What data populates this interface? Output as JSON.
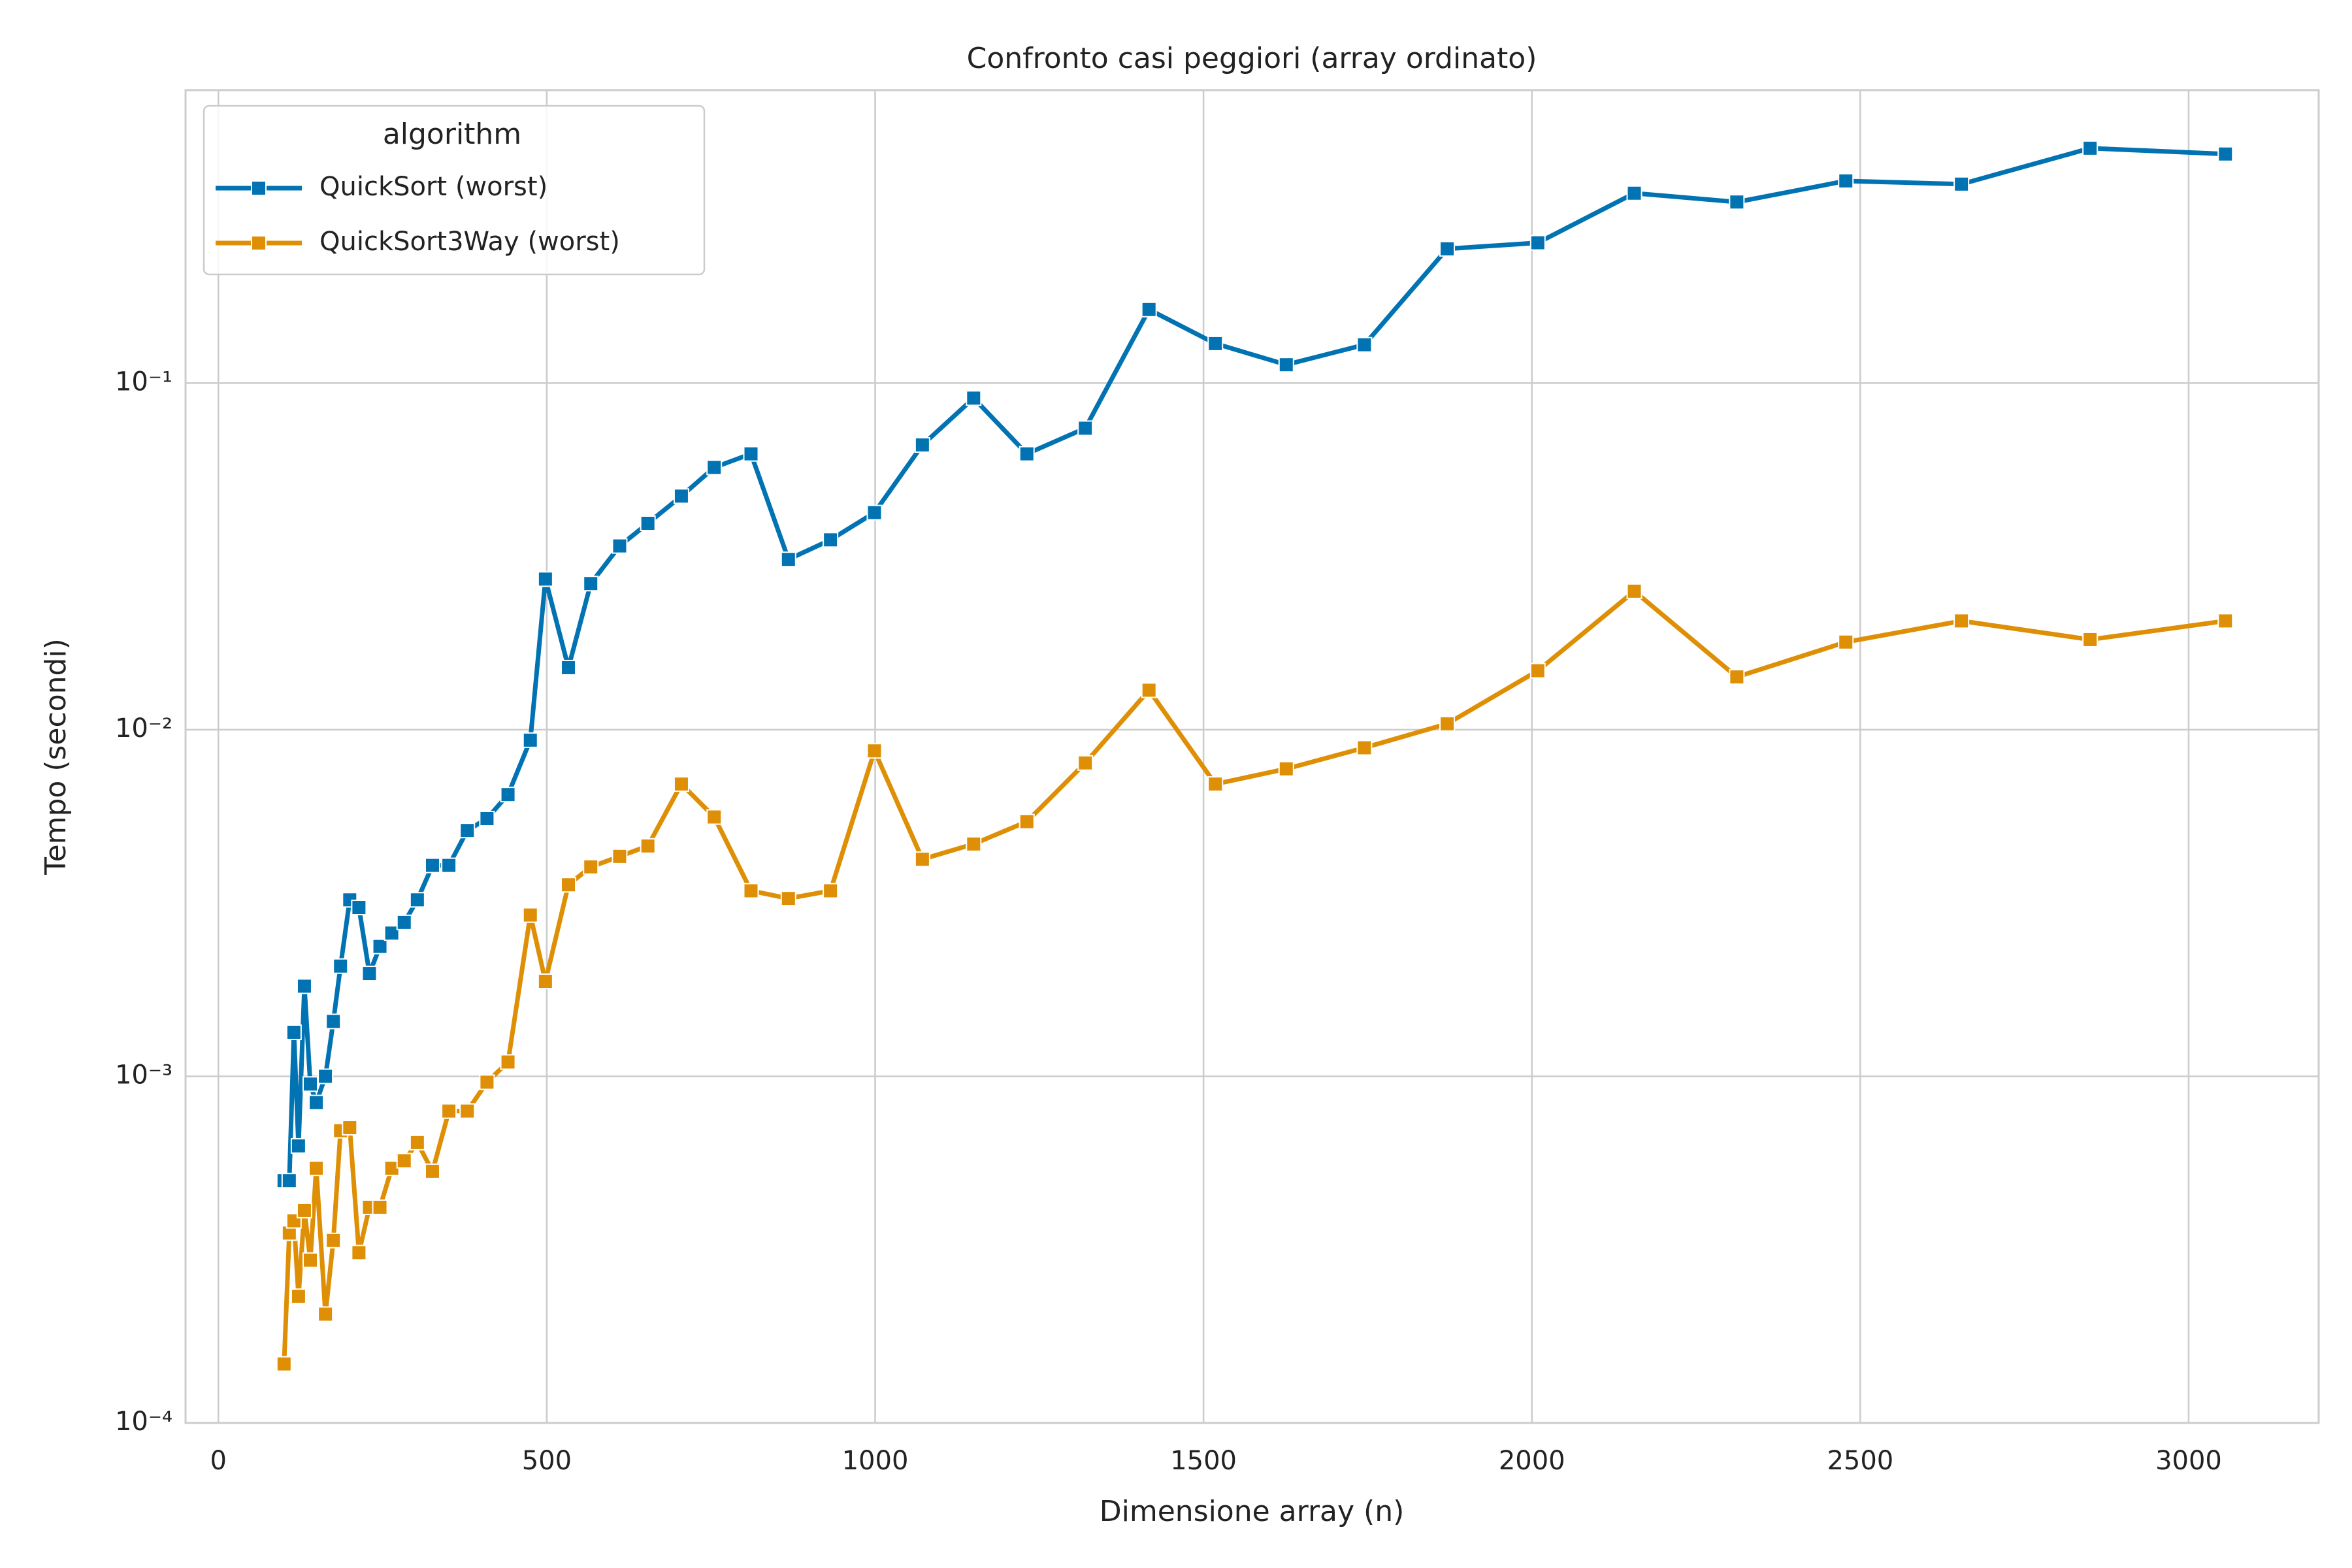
{
  "chart_data": {
    "type": "line",
    "title": "Confronto casi peggiori (array ordinato)",
    "x_label": "Dimensione array (n)",
    "y_label": "Tempo (secondi)",
    "x": [
      100,
      108,
      115,
      122,
      131,
      140,
      149,
      163,
      175,
      186,
      200,
      214,
      230,
      246,
      264,
      283,
      303,
      326,
      351,
      379,
      409,
      441,
      475,
      498,
      533,
      567,
      611,
      654,
      705,
      755,
      811,
      868,
      932,
      999,
      1072,
      1150,
      1231,
      1320,
      1417,
      1518,
      1626,
      1745,
      1871,
      2009,
      2156,
      2312,
      2478,
      2654,
      2850,
      3056
    ],
    "series": [
      {
        "name": "QuickSort (worst)",
        "color": "#0173b2",
        "values": [
          0.0005,
          0.0005,
          0.00134,
          0.00063,
          0.00182,
          0.00095,
          0.00084,
          0.001,
          0.00144,
          0.00208,
          0.00323,
          0.00307,
          0.00198,
          0.00237,
          0.00259,
          0.00278,
          0.00323,
          0.00406,
          0.00406,
          0.00512,
          0.00554,
          0.0065,
          0.00933,
          0.0272,
          0.0151,
          0.0264,
          0.0339,
          0.0394,
          0.0472,
          0.0571,
          0.0625,
          0.031,
          0.0353,
          0.0423,
          0.0663,
          0.0905,
          0.0625,
          0.0741,
          0.163,
          0.13,
          0.113,
          0.129,
          0.244,
          0.254,
          0.353,
          0.333,
          0.383,
          0.375,
          0.476,
          0.458
        ]
      },
      {
        "name": "QuickSort3Way (worst)",
        "color": "#de8f05",
        "values": [
          0.000148,
          0.000353,
          0.000383,
          0.000232,
          0.00041,
          0.000295,
          0.000543,
          0.000206,
          0.000336,
          0.000697,
          0.000711,
          0.00031,
          0.000419,
          0.000419,
          0.000543,
          0.000571,
          0.000644,
          0.000532,
          0.000794,
          0.000794,
          0.000962,
          0.0011,
          0.00292,
          0.00188,
          0.00357,
          0.00402,
          0.00431,
          0.00462,
          0.00697,
          0.0056,
          0.00343,
          0.00326,
          0.00343,
          0.00869,
          0.00423,
          0.00468,
          0.00543,
          0.00802,
          0.013,
          0.00697,
          0.00771,
          0.00887,
          0.0104,
          0.0148,
          0.0251,
          0.0142,
          0.0179,
          0.0206,
          0.0182,
          0.0206
        ]
      }
    ],
    "xlim": [
      -50,
      3198
    ],
    "xticks": [
      0,
      500,
      1000,
      1500,
      2000,
      2500,
      3000
    ],
    "ylim": [
      0.0001,
      0.7
    ],
    "y_scale": "log",
    "yticks": [
      {
        "value": 0.0001,
        "label": "10⁻⁴"
      },
      {
        "value": 0.001,
        "label": "10⁻³"
      },
      {
        "value": 0.01,
        "label": "10⁻²"
      },
      {
        "value": 0.1,
        "label": "10⁻¹"
      }
    ],
    "grid": true,
    "legend_title": "algorithm",
    "legend_position": "upper left"
  }
}
